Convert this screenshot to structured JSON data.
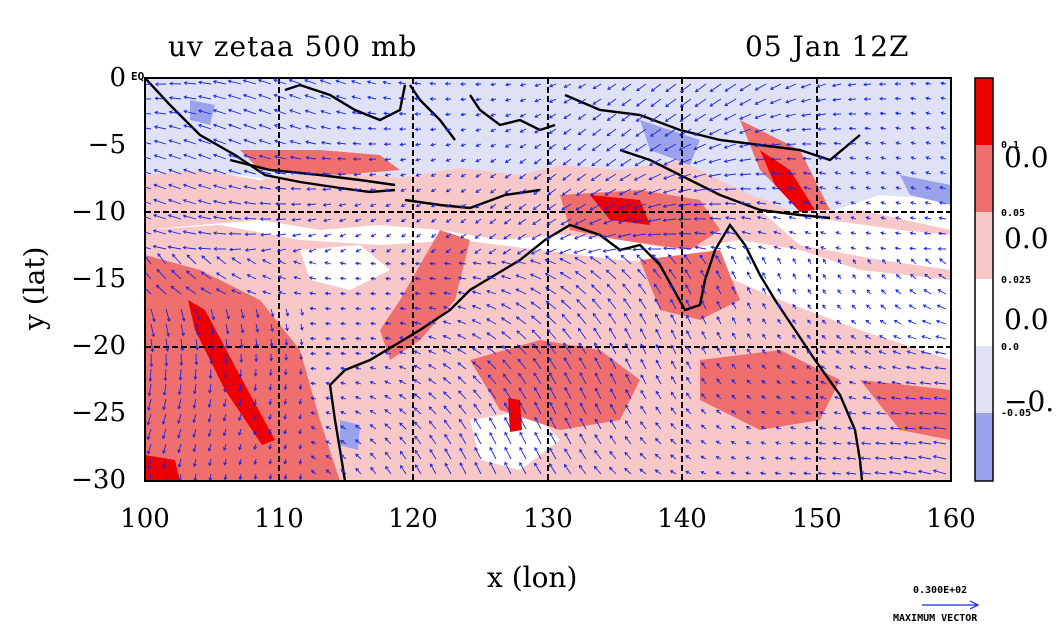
{
  "title": {
    "left": "uv zetaa 500 mb",
    "right": "05 Jan 12Z"
  },
  "axes": {
    "xlabel": "x (lon)",
    "ylabel": "y (lat)",
    "xticks": [
      "100",
      "110",
      "120",
      "130",
      "140",
      "150",
      "160"
    ],
    "yticks": [
      "0",
      "−5",
      "−10",
      "−15",
      "−20",
      "−25",
      "−30"
    ],
    "xlim": [
      100,
      160
    ],
    "ylim": [
      -30,
      0
    ],
    "grid_lon": [
      110,
      120,
      130,
      140,
      150
    ],
    "grid_lat": [
      -10,
      -20
    ],
    "eq_mark": "EQ"
  },
  "colorbar": {
    "small_labels": [
      "0.1",
      "0.05",
      "0.025",
      "0.0",
      "-0.05"
    ],
    "big_labels": [
      "0.0",
      "0.0",
      "0.0",
      "−0."
    ],
    "colors": [
      "#ee0000",
      "#ef6f6f",
      "#f8c8c8",
      "#ffffff",
      "#dfe1f7",
      "#9ba2ec"
    ]
  },
  "vector_key": {
    "value": "0.300E+02",
    "label": "MAXIMUM VECTOR"
  },
  "colors": {
    "vector": "#1a26e0",
    "coast": "#000000",
    "contour": "#cc0000"
  }
}
